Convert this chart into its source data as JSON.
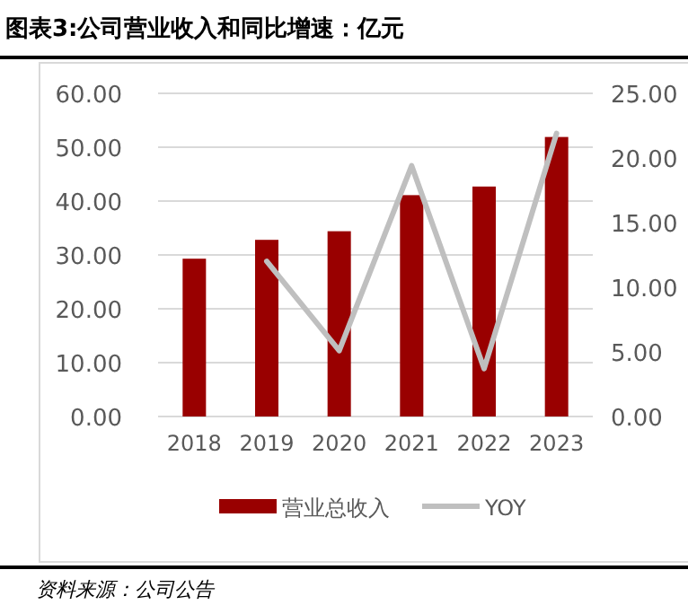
{
  "chart_data": {
    "type": "bar",
    "title": "图表3:公司营业收入和同比增速：亿元",
    "categories": [
      "2018",
      "2019",
      "2020",
      "2021",
      "2022",
      "2023"
    ],
    "series": [
      {
        "name": "营业总收入",
        "color": "#990000",
        "values": [
          29.3,
          32.8,
          34.4,
          41.1,
          42.7,
          51.9
        ]
      },
      {
        "name": "YOY",
        "type": "line",
        "axis": "y2",
        "color": "#bfbfbf",
        "values": [
          null,
          12.0,
          5.1,
          19.4,
          3.7,
          21.9
        ]
      }
    ],
    "ylim": [
      0,
      60
    ],
    "yticks": [
      {
        "value": 0,
        "label": "0.00"
      },
      {
        "value": 10,
        "label": "10.00"
      },
      {
        "value": 20,
        "label": "20.00"
      },
      {
        "value": 30,
        "label": "30.00"
      },
      {
        "value": 40,
        "label": "40.00"
      },
      {
        "value": 50,
        "label": "50.00"
      },
      {
        "value": 60,
        "label": "60.00"
      }
    ],
    "y2lim": [
      0,
      25
    ],
    "y2ticks": [
      {
        "value": 0,
        "label": "0.00"
      },
      {
        "value": 5,
        "label": "5.00"
      },
      {
        "value": 10,
        "label": "10.00"
      },
      {
        "value": 15,
        "label": "15.00"
      },
      {
        "value": 20,
        "label": "20.00"
      },
      {
        "value": 25,
        "label": "25.00"
      }
    ],
    "grid": "y",
    "legend": "bottom",
    "annotations": [
      "资料来源：公司公告"
    ]
  }
}
